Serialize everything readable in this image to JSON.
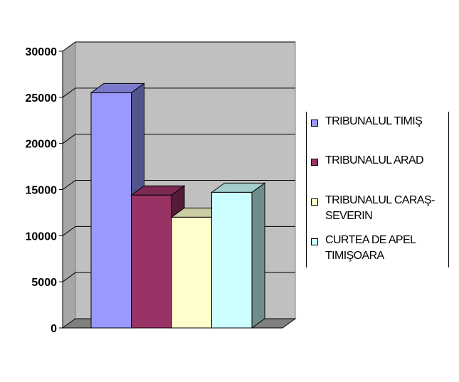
{
  "chart_data": {
    "type": "bar",
    "title": "",
    "xlabel": "",
    "ylabel": "",
    "ylim": [
      0,
      30000
    ],
    "yticks": [
      "0",
      "5000",
      "10000",
      "15000",
      "20000",
      "25000",
      "30000"
    ],
    "grid": true,
    "legend_position": "right",
    "series": [
      {
        "name": "TRIBUNALUL TIMIŞ",
        "values": [
          25500
        ],
        "color": "#9999ff"
      },
      {
        "name": "TRIBUNALUL ARAD",
        "values": [
          14400
        ],
        "color": "#993366"
      },
      {
        "name": "TRIBUNALUL CARAŞ-SEVERIN",
        "values": [
          12000
        ],
        "color": "#ffffcc"
      },
      {
        "name": "CURTEA DE APEL TIMIŞOARA",
        "values": [
          14700
        ],
        "color": "#ccffff"
      }
    ]
  }
}
